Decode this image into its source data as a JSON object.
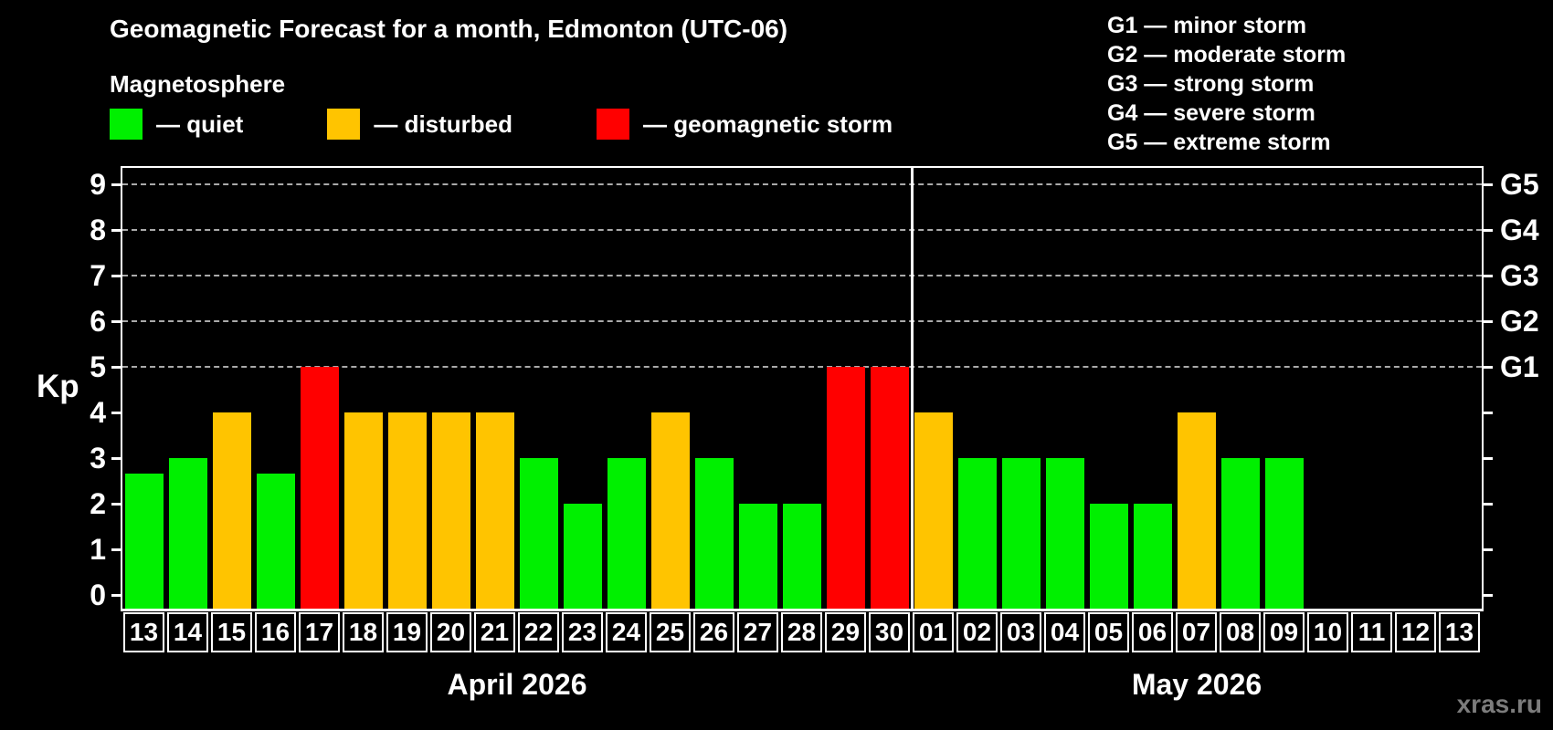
{
  "header": {
    "title": "Geomagnetic Forecast for a month, Edmonton (UTC-06)",
    "subtitle": "Magnetosphere",
    "legend": [
      {
        "status": "quiet",
        "label": "— quiet",
        "color": "#00f000"
      },
      {
        "status": "disturbed",
        "label": "— disturbed",
        "color": "#ffc400"
      },
      {
        "status": "storm",
        "label": "— geomagnetic storm",
        "color": "#ff0000"
      }
    ],
    "storm_scale": [
      "G1 — minor storm",
      "G2 — moderate storm",
      "G3 — strong storm",
      "G4 — severe storm",
      "G5 — extreme storm"
    ]
  },
  "chart_data": {
    "type": "bar",
    "ylabel": "Kp",
    "ylim": [
      -0.3,
      9.4
    ],
    "yticks": [
      0,
      1,
      2,
      3,
      4,
      5,
      6,
      7,
      8,
      9
    ],
    "gridlines_at": [
      5,
      6,
      7,
      8,
      9
    ],
    "grid_style": "dashed horizontal lines at Kp 5–9 only",
    "right_axis": [
      {
        "kp": 5,
        "label": "G1"
      },
      {
        "kp": 6,
        "label": "G2"
      },
      {
        "kp": 7,
        "label": "G3"
      },
      {
        "kp": 8,
        "label": "G4"
      },
      {
        "kp": 9,
        "label": "G5"
      }
    ],
    "colors": {
      "quiet": "#00f000",
      "disturbed": "#ffc400",
      "storm": "#ff0000"
    },
    "months": [
      {
        "label": "April 2026",
        "days": [
          {
            "day": "13",
            "kp": 2.67,
            "status": "quiet"
          },
          {
            "day": "14",
            "kp": 3,
            "status": "quiet"
          },
          {
            "day": "15",
            "kp": 4,
            "status": "disturbed"
          },
          {
            "day": "16",
            "kp": 2.67,
            "status": "quiet"
          },
          {
            "day": "17",
            "kp": 5,
            "status": "storm"
          },
          {
            "day": "18",
            "kp": 4,
            "status": "disturbed"
          },
          {
            "day": "19",
            "kp": 4,
            "status": "disturbed"
          },
          {
            "day": "20",
            "kp": 4,
            "status": "disturbed"
          },
          {
            "day": "21",
            "kp": 4,
            "status": "disturbed"
          },
          {
            "day": "22",
            "kp": 3,
            "status": "quiet"
          },
          {
            "day": "23",
            "kp": 2,
            "status": "quiet"
          },
          {
            "day": "24",
            "kp": 3,
            "status": "quiet"
          },
          {
            "day": "25",
            "kp": 4,
            "status": "disturbed"
          },
          {
            "day": "26",
            "kp": 3,
            "status": "quiet"
          },
          {
            "day": "27",
            "kp": 2,
            "status": "quiet"
          },
          {
            "day": "28",
            "kp": 2,
            "status": "quiet"
          },
          {
            "day": "29",
            "kp": 5,
            "status": "storm"
          },
          {
            "day": "30",
            "kp": 5,
            "status": "storm"
          }
        ]
      },
      {
        "label": "May 2026",
        "days": [
          {
            "day": "01",
            "kp": 4,
            "status": "disturbed"
          },
          {
            "day": "02",
            "kp": 3,
            "status": "quiet"
          },
          {
            "day": "03",
            "kp": 3,
            "status": "quiet"
          },
          {
            "day": "04",
            "kp": 3,
            "status": "quiet"
          },
          {
            "day": "05",
            "kp": 2,
            "status": "quiet"
          },
          {
            "day": "06",
            "kp": 2,
            "status": "quiet"
          },
          {
            "day": "07",
            "kp": 4,
            "status": "disturbed"
          },
          {
            "day": "08",
            "kp": 3,
            "status": "quiet"
          },
          {
            "day": "09",
            "kp": 3,
            "status": "quiet"
          },
          {
            "day": "10",
            "kp": null,
            "status": "none"
          },
          {
            "day": "11",
            "kp": null,
            "status": "none"
          },
          {
            "day": "12",
            "kp": null,
            "status": "none"
          },
          {
            "day": "13",
            "kp": null,
            "status": "none"
          }
        ]
      }
    ]
  },
  "footer": {
    "watermark": "xras.ru"
  }
}
